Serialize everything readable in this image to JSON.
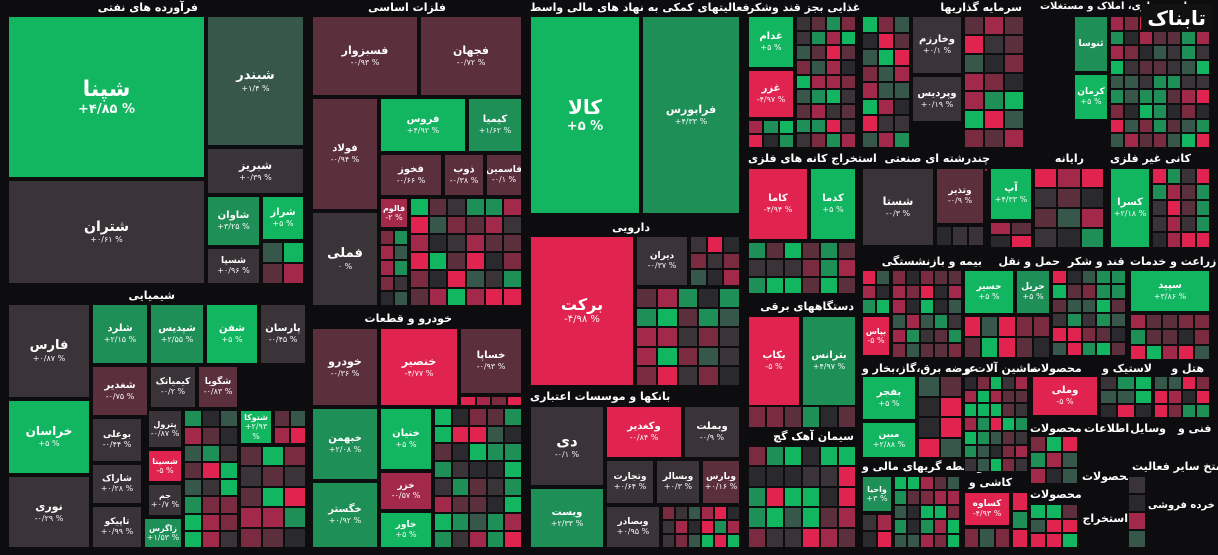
{
  "brand": {
    "watermark": "تابناک"
  },
  "colors": {
    "up_strong": "#12b560",
    "up": "#1f8f58",
    "up_dim": "#36574a",
    "flat": "#3a3338",
    "down_dim": "#5c2f3d",
    "down": "#a3294a",
    "down_strong": "#e0244f"
  },
  "sections": [
    {
      "id": "oil",
      "label": "فرآورده های نفتی"
    },
    {
      "id": "metals",
      "label": "فلزات اساسی"
    },
    {
      "id": "financial",
      "label": "فعالیتهای کمکی به نهاد های مالی واسط"
    },
    {
      "id": "food",
      "label": "غذایی بجز قند وشکر"
    },
    {
      "id": "invest",
      "label": "سرمایه گذاریها"
    },
    {
      "id": "realestate",
      "label": "انبوه سازی، املاک و مستغلات"
    },
    {
      "id": "chemicals",
      "label": "شیمیایی"
    },
    {
      "id": "auto",
      "label": "خودرو و قطعات"
    },
    {
      "id": "pharma",
      "label": "دارویی"
    },
    {
      "id": "mining",
      "label": "استخراج کانه های فلزی"
    },
    {
      "id": "multi",
      "label": "چندرشته ای صنعتی"
    },
    {
      "id": "computer",
      "label": "رایانه"
    },
    {
      "id": "nonmetal",
      "label": "کانی غیر فلزی"
    },
    {
      "id": "insurance",
      "label": "بیمه و بازنشستگی"
    },
    {
      "id": "transport",
      "label": "حمل و نقل"
    },
    {
      "id": "sugar",
      "label": "قند و شکر"
    },
    {
      "id": "agri",
      "label": "زراعت و خدمات"
    },
    {
      "id": "electric",
      "label": "دستگاههای برقی"
    },
    {
      "id": "banks",
      "label": "بانکها و موسسات اعتباری"
    },
    {
      "id": "utility",
      "label": "عرضه برق،گاز،بخار و"
    },
    {
      "id": "machinery",
      "label": "ماشین آلات و"
    },
    {
      "id": "products",
      "label": "محصولات"
    },
    {
      "id": "rubber",
      "label": "لاستیک و"
    },
    {
      "id": "hotel",
      "label": "هتل و"
    },
    {
      "id": "cement",
      "label": "سیمان آهک گچ"
    },
    {
      "id": "brokers",
      "label": "واسطه گریهای مالی و"
    },
    {
      "id": "tile",
      "label": "کاشی و"
    },
    {
      "id": "info",
      "label": "اطلاعات"
    },
    {
      "id": "tech",
      "label": "فنی و"
    },
    {
      "id": "tools",
      "label": "وسایل"
    },
    {
      "id": "prod2",
      "label": "محصولات"
    },
    {
      "id": "prod3",
      "label": "محصولات"
    },
    {
      "id": "extract",
      "label": "استخراج"
    },
    {
      "id": "other",
      "label": "استخ سایر فعالیت"
    },
    {
      "id": "retail",
      "label": "خرده فروشی"
    },
    {
      "id": "prod4",
      "label": "محصولات"
    }
  ],
  "tiles": [
    {
      "symbol": "شپنا",
      "change": "+۴/۸۵ %",
      "color": "up_strong"
    },
    {
      "symbol": "شبندر",
      "change": "+۱/۴ %",
      "color": "up_dim"
    },
    {
      "symbol": "شبریز",
      "change": "+۰/۳۹ %",
      "color": "flat"
    },
    {
      "symbol": "شتران",
      "change": "+۰/۶۱ %",
      "color": "flat"
    },
    {
      "symbol": "شاوان",
      "change": "+۳/۲۵ %",
      "color": "up"
    },
    {
      "symbol": "شراز",
      "change": "+۵ %",
      "color": "up_strong"
    },
    {
      "symbol": "شسپا",
      "change": "+۰/۹۶ %",
      "color": "flat"
    },
    {
      "symbol": "فسبزوار",
      "change": "-۰/۹۳ %",
      "color": "down_dim"
    },
    {
      "symbol": "فجهان",
      "change": "-۰/۷۲ %",
      "color": "down_dim"
    },
    {
      "symbol": "فولاد",
      "change": "-۰/۹۴ %",
      "color": "down_dim"
    },
    {
      "symbol": "فروس",
      "change": "+۴/۹۲ %",
      "color": "up_strong"
    },
    {
      "symbol": "کیمیا",
      "change": "+۱/۶۲ %",
      "color": "up"
    },
    {
      "symbol": "فخوز",
      "change": "-۰/۶۶ %",
      "color": "down_dim"
    },
    {
      "symbol": "ذوب",
      "change": "-۰/۳۸ %",
      "color": "down_dim"
    },
    {
      "symbol": "فاسمین",
      "change": "-۰/۱ %",
      "color": "down_dim"
    },
    {
      "symbol": "فالوم",
      "change": "-۲ %",
      "color": "down"
    },
    {
      "symbol": "فملی",
      "change": "۰ %",
      "color": "flat"
    },
    {
      "symbol": "کالا",
      "change": "+۵ %",
      "color": "up_strong"
    },
    {
      "symbol": "فرابورس",
      "change": "+۴/۳۳ %",
      "color": "up"
    },
    {
      "symbol": "غدام",
      "change": "+۵ %",
      "color": "up_strong"
    },
    {
      "symbol": "غزر",
      "change": "-۴/۹۷ %",
      "color": "down_strong"
    },
    {
      "symbol": "وخارزم",
      "change": "+۰/۱ %",
      "color": "flat"
    },
    {
      "symbol": "وپردیس",
      "change": "+۰/۱۹ %",
      "color": "flat"
    },
    {
      "symbol": "ثنوسا",
      "change": "",
      "color": "up"
    },
    {
      "symbol": "کرمان",
      "change": "+۵ %",
      "color": "up_strong"
    },
    {
      "symbol": "فارس",
      "change": "+۰/۸۷ %",
      "color": "flat"
    },
    {
      "symbol": "شلرد",
      "change": "+۲/۱۵ %",
      "color": "up"
    },
    {
      "symbol": "شپدیس",
      "change": "+۲/۵۵ %",
      "color": "up"
    },
    {
      "symbol": "شغدیر",
      "change": "-۰/۷۵ %",
      "color": "down_dim"
    },
    {
      "symbol": "شفن",
      "change": "+۵ %",
      "color": "up_strong"
    },
    {
      "symbol": "پارسان",
      "change": "-۰/۴۵ %",
      "color": "flat"
    },
    {
      "symbol": "کیمیاتک",
      "change": "-۰/۲ %",
      "color": "flat"
    },
    {
      "symbol": "شگویا",
      "change": "-۰/۸۳ %",
      "color": "down_dim"
    },
    {
      "symbol": "خراسان",
      "change": "+۵ %",
      "color": "up_strong"
    },
    {
      "symbol": "بوعلی",
      "change": "-۰/۴۴ %",
      "color": "flat"
    },
    {
      "symbol": "شتوکا",
      "change": "+۲/۹۳ %",
      "color": "up_strong"
    },
    {
      "symbol": "پترول",
      "change": "-۰/۸۷ %",
      "color": "flat"
    },
    {
      "symbol": "شسینا",
      "change": "-۵ %",
      "color": "down_strong"
    },
    {
      "symbol": "شاراک",
      "change": "+۰/۲۸ %",
      "color": "flat"
    },
    {
      "symbol": "جم",
      "change": "+۰/۷ %",
      "color": "flat"
    },
    {
      "symbol": "نوری",
      "change": "-۰/۲۹ %",
      "color": "flat"
    },
    {
      "symbol": "تاپیکو",
      "change": "+۰/۹۹ %",
      "color": "flat"
    },
    {
      "symbol": "زاگرس",
      "change": "+۱/۵۳ %",
      "color": "up"
    },
    {
      "symbol": "خودرو",
      "change": "-۰/۳۶ %",
      "color": "down_dim"
    },
    {
      "symbol": "خنصیر",
      "change": "-۴/۷۷ %",
      "color": "down_strong"
    },
    {
      "symbol": "خساپا",
      "change": "-۰/۹۳ %",
      "color": "down_dim"
    },
    {
      "symbol": "خبهمن",
      "change": "+۲/۰۸ %",
      "color": "up"
    },
    {
      "symbol": "خنیان",
      "change": "+۵ %",
      "color": "up_strong"
    },
    {
      "symbol": "خزر",
      "change": "-۰/۵۷ %",
      "color": "down"
    },
    {
      "symbol": "خگستر",
      "change": "+۰/۹۲ %",
      "color": "up"
    },
    {
      "symbol": "خاور",
      "change": "+۵ %",
      "color": "up_strong"
    },
    {
      "symbol": "برکت",
      "change": "-۴/۹۸ %",
      "color": "down_strong"
    },
    {
      "symbol": "دیران",
      "change": "-۰/۳۷ %",
      "color": "flat"
    },
    {
      "symbol": "دی",
      "change": "-۰/۱ %",
      "color": "flat"
    },
    {
      "symbol": "وکغدیر",
      "change": "-۰/۸۴ %",
      "color": "down_strong"
    },
    {
      "symbol": "وبملت",
      "change": "-۰/۹ %",
      "color": "flat"
    },
    {
      "symbol": "وتجارت",
      "change": "+۰/۶۴ %",
      "color": "flat"
    },
    {
      "symbol": "وبسالر",
      "change": "+۰/۳ %",
      "color": "flat"
    },
    {
      "symbol": "وبارس",
      "change": "+۰/۱۶ %",
      "color": "down_dim"
    },
    {
      "symbol": "ویست",
      "change": "+۲/۳۳ %",
      "color": "up"
    },
    {
      "symbol": "وبصادر",
      "change": "+۰/۹۵ %",
      "color": "flat"
    },
    {
      "symbol": "کاما",
      "change": "-۴/۹۴ %",
      "color": "down_strong"
    },
    {
      "symbol": "کدما",
      "change": "+۵ %",
      "color": "up_strong"
    },
    {
      "symbol": "شستا",
      "change": "-۰/۳ %",
      "color": "flat"
    },
    {
      "symbol": "وتذیر",
      "change": "-۰/۹ %",
      "color": "down_dim"
    },
    {
      "symbol": "آپ",
      "change": "+۴/۳۳ %",
      "color": "up_strong"
    },
    {
      "symbol": "کسرا",
      "change": "+۲/۱۸ %",
      "color": "up_strong"
    },
    {
      "symbol": "حسیر",
      "change": "+۵ %",
      "color": "up_strong"
    },
    {
      "symbol": "حریل",
      "change": "+۵ %",
      "color": "up"
    },
    {
      "symbol": "سپید",
      "change": "+۳/۸۶ %",
      "color": "up_strong"
    },
    {
      "symbol": "بپاس",
      "change": "-۵ %",
      "color": "down_strong"
    },
    {
      "symbol": "بکاب",
      "change": "-۵ %",
      "color": "down_strong"
    },
    {
      "symbol": "بترانس",
      "change": "+۴/۹۷ %",
      "color": "up"
    },
    {
      "symbol": "بفجر",
      "change": "+۵ %",
      "color": "up_strong"
    },
    {
      "symbol": "مبین",
      "change": "+۲/۸۸ %",
      "color": "up_strong"
    },
    {
      "symbol": "وملی",
      "change": "-۵ %",
      "color": "down_strong"
    },
    {
      "symbol": "واحیا",
      "change": "+۳ %",
      "color": "up"
    },
    {
      "symbol": "کساوه",
      "change": "-۴/۹۳ %",
      "color": "down_strong"
    }
  ]
}
